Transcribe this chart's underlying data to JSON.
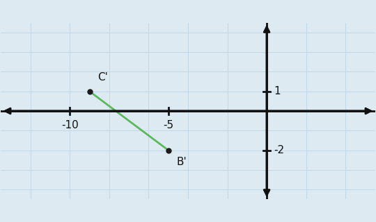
{
  "background_color": "#ddeaf2",
  "xlim": [
    -13.5,
    5.5
  ],
  "ylim": [
    -4.5,
    4.5
  ],
  "x_ticks": [
    -10,
    -5
  ],
  "y_ticks": [
    1,
    -2
  ],
  "B_prime": [
    -5,
    -2
  ],
  "C_prime": [
    -9,
    1
  ],
  "line_color": "#5cb85c",
  "point_color": "#1a1a1a",
  "point_size": 5,
  "label_B": "B'",
  "label_C": "C'",
  "label_fontsize": 11,
  "axis_color": "#111111",
  "tick_half": 0.18,
  "grid_color": "#c2d8e8",
  "grid_lw": 0.7
}
